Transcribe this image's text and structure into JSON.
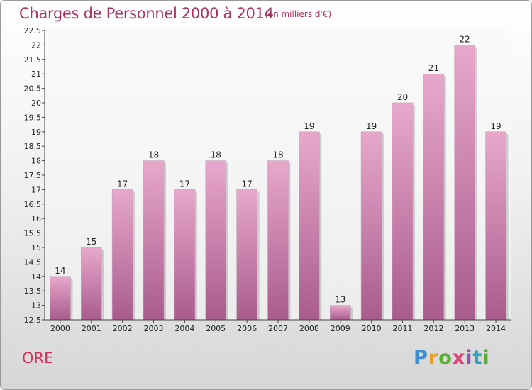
{
  "header": {
    "title": "Charges de Personnel 2000 à 2014",
    "subtitle": "(en milliers d'€)"
  },
  "footer": {
    "commune": "ORE",
    "logo_letters": [
      "P",
      "r",
      "o",
      "x",
      "i",
      "t",
      "i"
    ],
    "logo_colors": [
      "#3a8fd0",
      "#e8a020",
      "#58b030",
      "#e04070",
      "#9050b8",
      "#30a0c0",
      "#58b030"
    ]
  },
  "colors": {
    "title": "#b03060",
    "bar_top": "#e8a8cc",
    "bar_bottom": "#a85c8c"
  },
  "chart_data": {
    "type": "bar",
    "categories": [
      "2000",
      "2001",
      "2002",
      "2003",
      "2004",
      "2005",
      "2006",
      "2007",
      "2008",
      "2009",
      "2010",
      "2011",
      "2012",
      "2013",
      "2014"
    ],
    "values": [
      14,
      15,
      17,
      18,
      17,
      18,
      17,
      18,
      19,
      13,
      19,
      20,
      21,
      22,
      19
    ],
    "ylim": [
      12.5,
      22.5
    ],
    "yticks": [
      "12.5",
      "13",
      "13.5",
      "14",
      "14.5",
      "15",
      "15.5",
      "16",
      "16.5",
      "17",
      "17.5",
      "18",
      "18.5",
      "19",
      "19.5",
      "20",
      "20.5",
      "21",
      "21.5",
      "22",
      "22.5"
    ],
    "grid": false,
    "xlabel": "",
    "ylabel": ""
  }
}
